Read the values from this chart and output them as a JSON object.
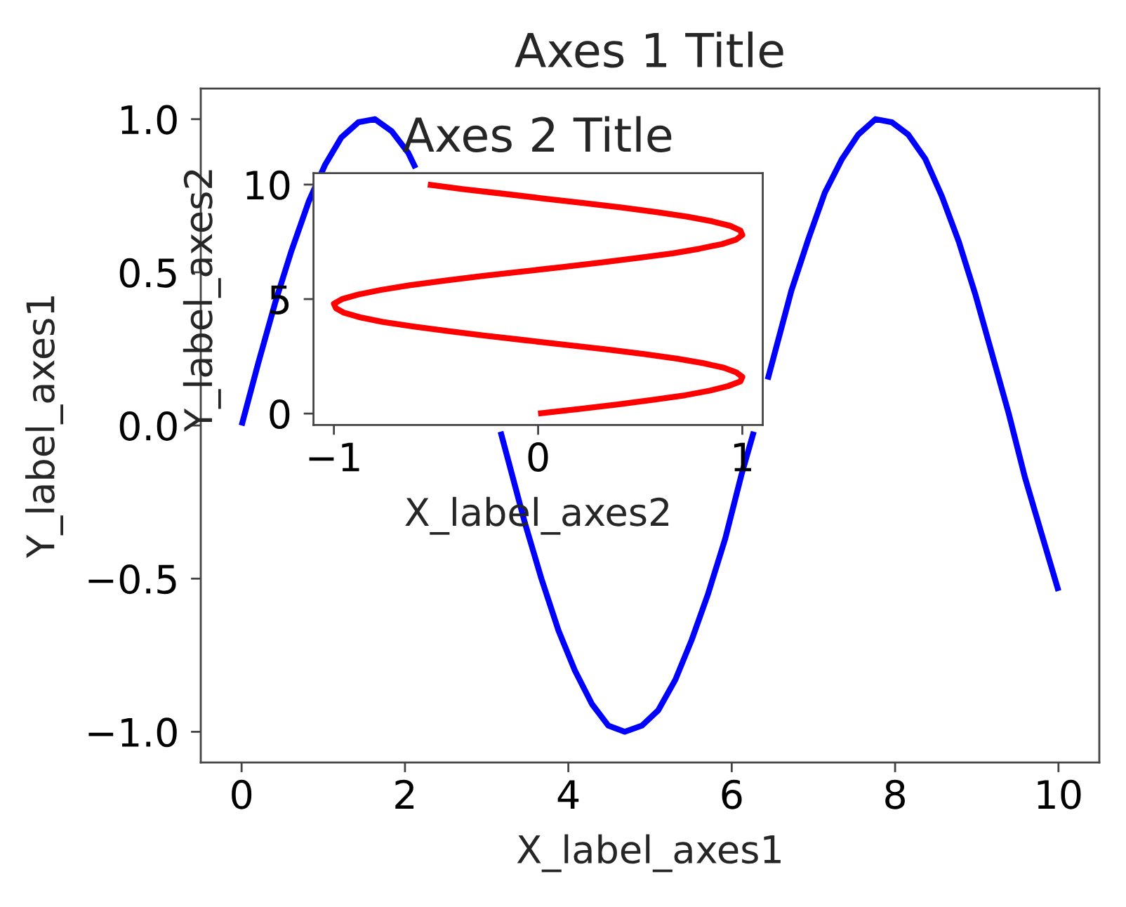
{
  "chart_data": [
    {
      "type": "line",
      "title": "Axes 1 Title",
      "xlabel": "X_label_axes1",
      "ylabel": "Y_label_axes1",
      "series": [
        {
          "color": "#0000ff",
          "x": [
            0,
            0.2,
            0.41,
            0.61,
            0.82,
            1.02,
            1.22,
            1.43,
            1.63,
            1.84,
            2.04,
            2.13,
            2.24,
            2.45,
            2.65,
            2.86,
            3.06,
            3.17,
            3.27,
            3.47,
            3.67,
            3.88,
            4.08,
            4.29,
            4.49,
            4.69,
            4.9,
            5.1,
            5.31,
            5.51,
            5.71,
            5.92,
            6.12,
            6.27,
            6.33,
            6.44,
            6.53,
            6.73,
            6.94,
            7.14,
            7.35,
            7.55,
            7.76,
            7.96,
            8.16,
            8.37,
            8.57,
            8.78,
            8.98,
            9.18,
            9.39,
            9.59,
            9.8,
            10
          ],
          "values": [
            0,
            0.2,
            0.4,
            0.57,
            0.73,
            0.85,
            0.94,
            0.99,
            1.0,
            0.96,
            0.89,
            0.84,
            null,
            null,
            null,
            null,
            null,
            -0.02,
            -0.12,
            -0.32,
            -0.5,
            -0.67,
            -0.8,
            -0.91,
            -0.98,
            -1.0,
            -0.98,
            -0.93,
            -0.83,
            -0.7,
            -0.55,
            -0.37,
            -0.16,
            -0.02,
            null,
            0.15,
            0.24,
            0.44,
            0.61,
            0.76,
            0.87,
            0.95,
            1.0,
            0.99,
            0.95,
            0.87,
            0.75,
            0.6,
            0.43,
            0.24,
            0.04,
            -0.17,
            -0.36,
            -0.54
          ]
        }
      ],
      "xlim": [
        -0.5,
        10.5
      ],
      "ylim": [
        -1.1,
        1.1
      ],
      "xticks": [
        0,
        2,
        4,
        6,
        8,
        10
      ],
      "yticks": [
        {
          "value": -1.0,
          "label": "−1.0"
        },
        {
          "value": -0.5,
          "label": "−0.5"
        },
        {
          "value": 0.0,
          "label": "0.0"
        },
        {
          "value": 0.5,
          "label": "0.5"
        },
        {
          "value": 1.0,
          "label": "1.0"
        }
      ]
    },
    {
      "type": "line",
      "title": "Axes 2 Title",
      "xlabel": "X_label_axes2",
      "ylabel": "Y_label_axes2",
      "series": [
        {
          "color": "#ff0000",
          "x": [
            0,
            0.2,
            0.39,
            0.56,
            0.72,
            0.84,
            0.93,
            0.99,
            1.0,
            0.97,
            0.91,
            0.81,
            0.68,
            0.52,
            0.34,
            0.14,
            -0.06,
            -0.26,
            -0.44,
            -0.61,
            -0.76,
            -0.87,
            -0.95,
            -0.99,
            -1.0,
            -0.96,
            -0.88,
            -0.77,
            -0.63,
            -0.46,
            -0.28,
            -0.08,
            0.12,
            0.31,
            0.49,
            0.66,
            0.79,
            0.9,
            0.97,
            1.0,
            0.99,
            0.94,
            0.85,
            0.73,
            0.58,
            0.41,
            0.22,
            0.02,
            -0.17,
            -0.37,
            -0.54
          ],
          "values": [
            0,
            0.2,
            0.4,
            0.6,
            0.8,
            1.0,
            1.2,
            1.4,
            1.6,
            1.8,
            2.0,
            2.2,
            2.4,
            2.6,
            2.8,
            3.0,
            3.2,
            3.4,
            3.6,
            3.8,
            4.0,
            4.2,
            4.4,
            4.6,
            4.8,
            5.0,
            5.2,
            5.4,
            5.6,
            5.8,
            6.0,
            6.2,
            6.4,
            6.6,
            6.8,
            7.0,
            7.2,
            7.4,
            7.6,
            7.8,
            8.0,
            8.2,
            8.4,
            8.6,
            8.8,
            9.0,
            9.2,
            9.4,
            9.6,
            9.8,
            10.0
          ]
        }
      ],
      "xlim": [
        -1.1,
        1.1
      ],
      "ylim": [
        -0.5,
        10.5
      ],
      "xticks": [
        {
          "value": -1,
          "label": "−1"
        },
        0,
        1
      ],
      "yticks": [
        0,
        5,
        10
      ]
    }
  ]
}
